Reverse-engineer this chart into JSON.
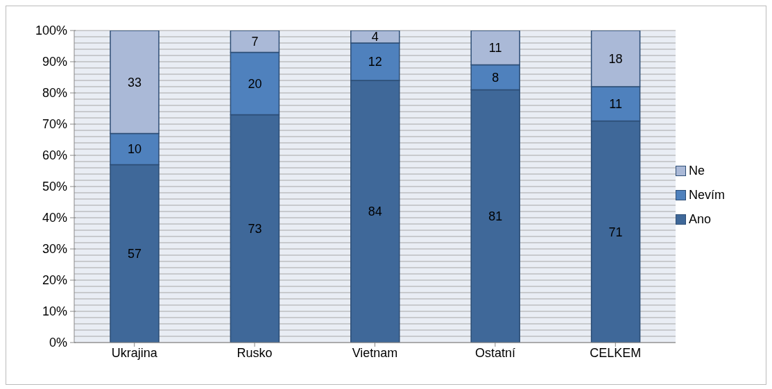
{
  "chart_data": {
    "type": "bar",
    "stacked": true,
    "categories": [
      "Ukrajina",
      "Rusko",
      "Vietnam",
      "Ostatní",
      "CELKEM"
    ],
    "series": [
      {
        "name": "Ano",
        "color": "#3f6899",
        "values": [
          57,
          73,
          84,
          81,
          71
        ]
      },
      {
        "name": "Nevím",
        "color": "#4f81bd",
        "values": [
          10,
          20,
          12,
          8,
          11
        ]
      },
      {
        "name": "Ne",
        "color": "#aab9d7",
        "values": [
          33,
          7,
          4,
          11,
          18
        ]
      }
    ],
    "ylim": [
      0,
      100
    ],
    "yticks": [
      {
        "value": 0,
        "label": "0%"
      },
      {
        "value": 2,
        "label": null
      },
      {
        "value": 4,
        "label": null
      },
      {
        "value": 6,
        "label": null
      },
      {
        "value": 8,
        "label": null
      },
      {
        "value": 10,
        "label": "10%"
      },
      {
        "value": 12,
        "label": null
      },
      {
        "value": 14,
        "label": null
      },
      {
        "value": 16,
        "label": null
      },
      {
        "value": 18,
        "label": null
      },
      {
        "value": 20,
        "label": "20%"
      },
      {
        "value": 22,
        "label": null
      },
      {
        "value": 24,
        "label": null
      },
      {
        "value": 26,
        "label": null
      },
      {
        "value": 28,
        "label": null
      },
      {
        "value": 30,
        "label": "30%"
      },
      {
        "value": 32,
        "label": null
      },
      {
        "value": 34,
        "label": null
      },
      {
        "value": 36,
        "label": null
      },
      {
        "value": 38,
        "label": null
      },
      {
        "value": 40,
        "label": "40%"
      },
      {
        "value": 42,
        "label": null
      },
      {
        "value": 44,
        "label": null
      },
      {
        "value": 46,
        "label": null
      },
      {
        "value": 48,
        "label": null
      },
      {
        "value": 50,
        "label": "50%"
      },
      {
        "value": 52,
        "label": null
      },
      {
        "value": 54,
        "label": null
      },
      {
        "value": 56,
        "label": null
      },
      {
        "value": 58,
        "label": null
      },
      {
        "value": 60,
        "label": "60%"
      },
      {
        "value": 62,
        "label": null
      },
      {
        "value": 64,
        "label": null
      },
      {
        "value": 66,
        "label": null
      },
      {
        "value": 68,
        "label": null
      },
      {
        "value": 70,
        "label": "70%"
      },
      {
        "value": 72,
        "label": null
      },
      {
        "value": 74,
        "label": null
      },
      {
        "value": 76,
        "label": null
      },
      {
        "value": 78,
        "label": null
      },
      {
        "value": 80,
        "label": "80%"
      },
      {
        "value": 82,
        "label": null
      },
      {
        "value": 84,
        "label": null
      },
      {
        "value": 86,
        "label": null
      },
      {
        "value": 88,
        "label": null
      },
      {
        "value": 90,
        "label": "90%"
      },
      {
        "value": 92,
        "label": null
      },
      {
        "value": 94,
        "label": null
      },
      {
        "value": 96,
        "label": null
      },
      {
        "value": 98,
        "label": null
      },
      {
        "value": 100,
        "label": "100%"
      }
    ],
    "grid": "y",
    "legend": "right",
    "data_labels": true
  }
}
